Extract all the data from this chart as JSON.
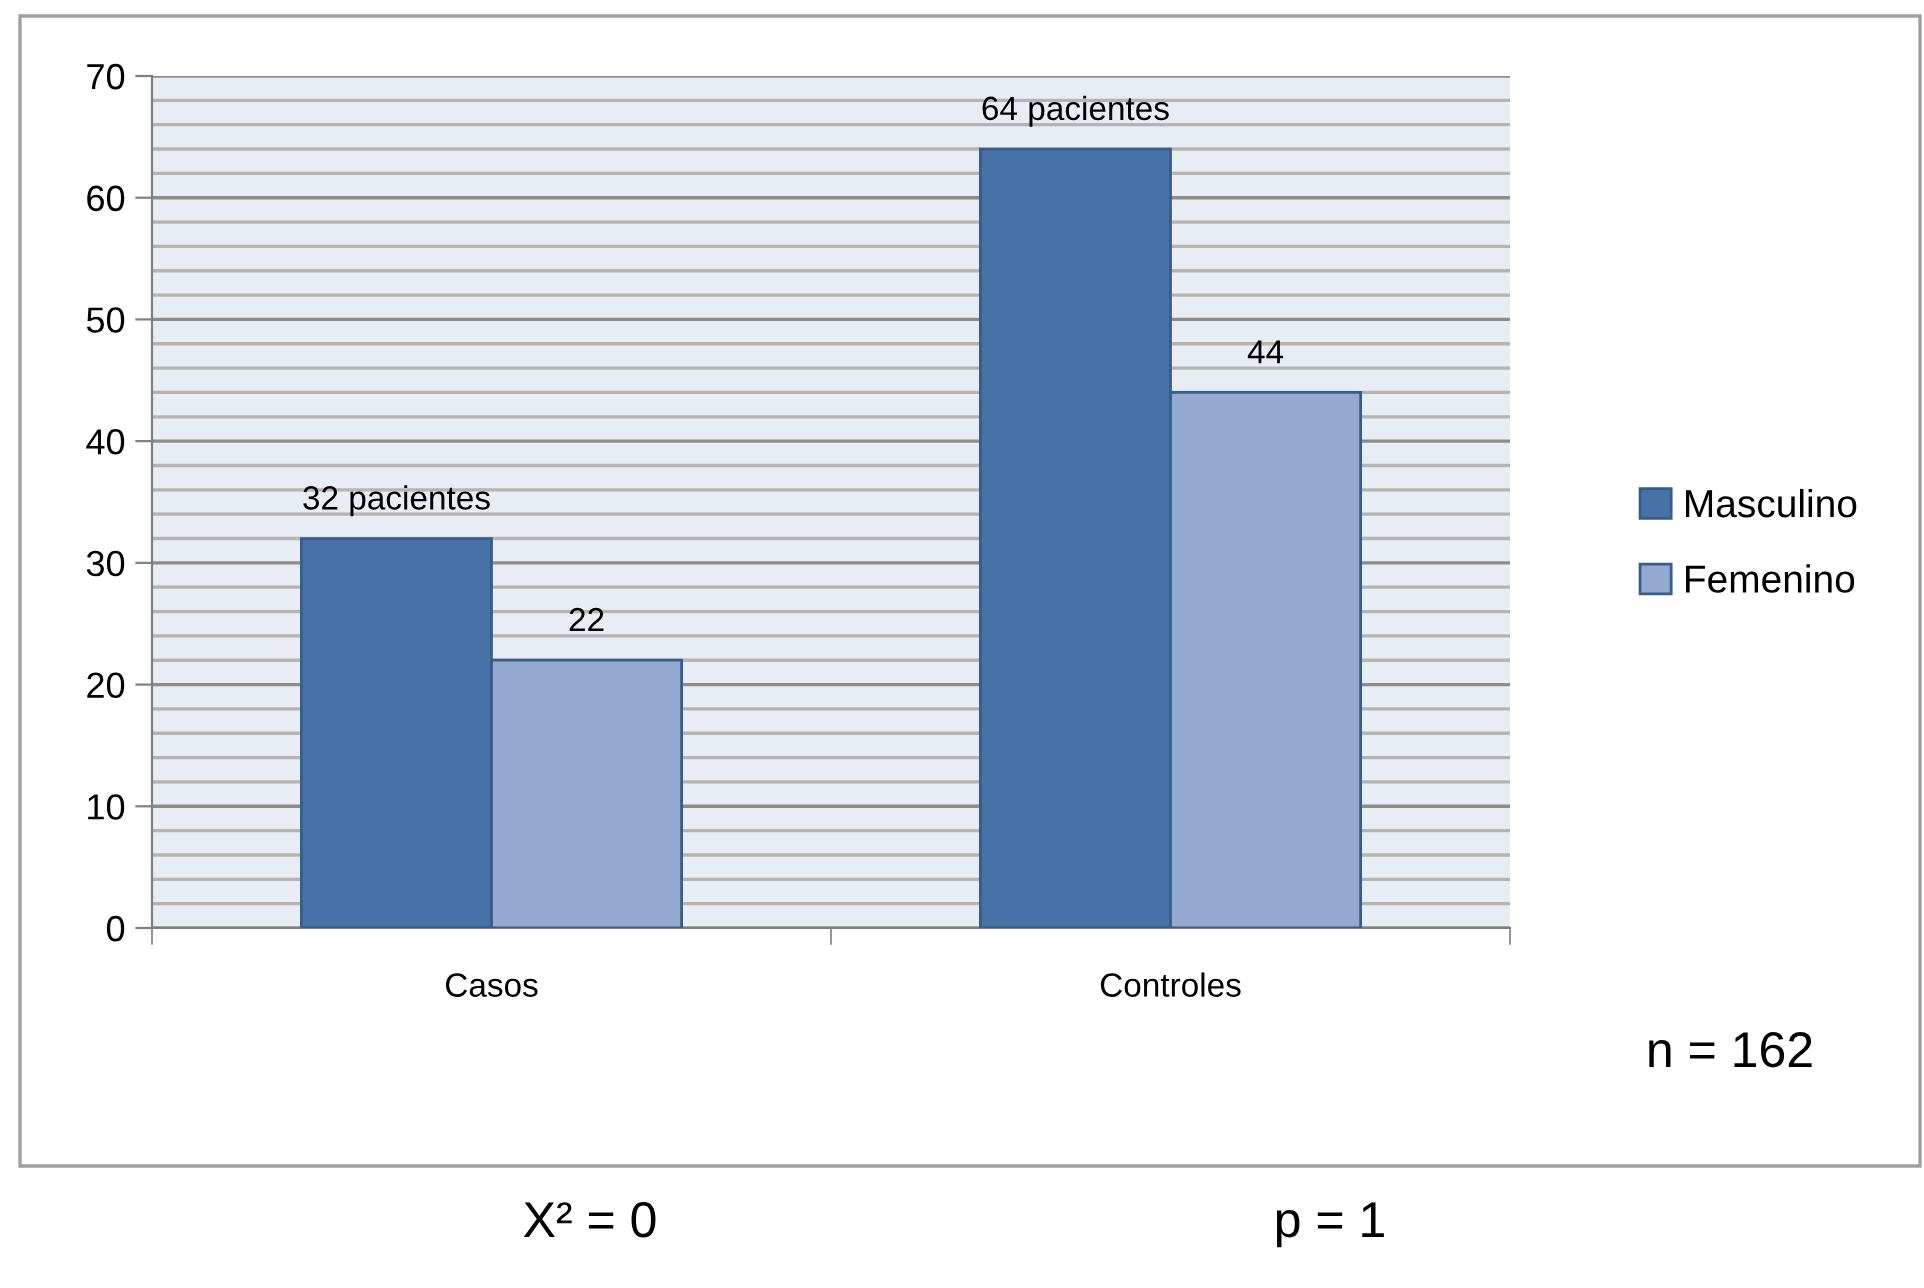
{
  "chart_data": {
    "type": "bar",
    "categories": [
      "Casos",
      "Controles"
    ],
    "series": [
      {
        "name": "Masculino",
        "color": "#4672a8",
        "values": [
          32,
          64
        ],
        "value_labels": [
          "32 pacientes",
          "64 pacientes"
        ]
      },
      {
        "name": "Femenino",
        "color": "#95a9d0",
        "values": [
          22,
          44
        ],
        "value_labels": [
          "22",
          "44"
        ]
      }
    ],
    "ylim": [
      0,
      70
    ],
    "yticks": [
      0,
      10,
      20,
      30,
      40,
      50,
      60,
      70
    ],
    "grid": "y",
    "legend": "right",
    "annotations": [
      "n = 162",
      "X² = 0",
      "p = 1"
    ]
  }
}
